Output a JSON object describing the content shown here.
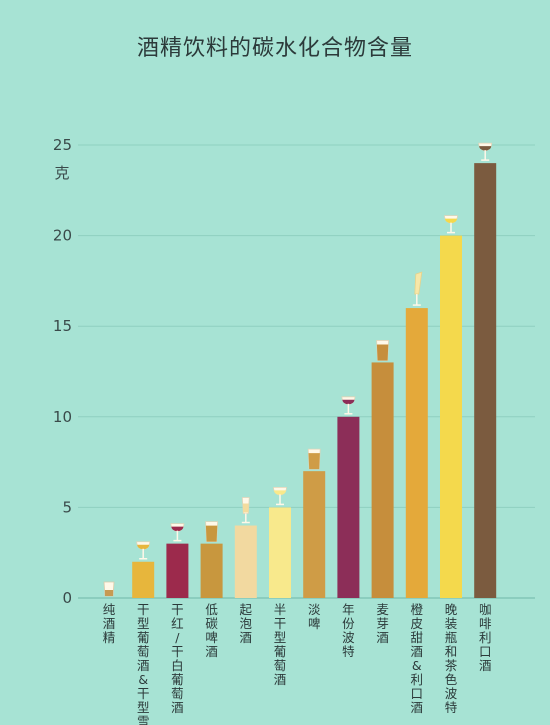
{
  "chart_data": {
    "type": "bar",
    "title": "酒精饮料的碳水化合物含量",
    "ylabel": "克",
    "ylim": [
      0,
      25
    ],
    "yticks": [
      0,
      5,
      10,
      15,
      20,
      25
    ],
    "grid": true,
    "categories": [
      "纯酒精",
      "干型葡萄酒&干型雪利酒",
      "干红/干白葡萄酒",
      "低碳啤酒",
      "起泡酒",
      "半干型葡萄酒",
      "淡啤",
      "年份波特",
      "麦芽酒",
      "橙皮甜酒&利口酒",
      "晚装瓶和茶色波特",
      "咖啡利口酒"
    ],
    "values": [
      0,
      2,
      3,
      3,
      4,
      5,
      7,
      10,
      13,
      16,
      20,
      24
    ],
    "colors": [
      "#c79a52",
      "#e7b63c",
      "#9c2a4c",
      "#c8973e",
      "#f2d9a0",
      "#f8e98c",
      "#cf9c46",
      "#8c2e58",
      "#c68e3c",
      "#e4a93a",
      "#f4d94c",
      "#7b5b3f"
    ],
    "glass_icons": [
      "shot-glass-icon",
      "white-wine-glass-icon",
      "red-wine-glass-icon",
      "beer-glass-icon",
      "champagne-flute-icon",
      "white-wine-glass-icon",
      "beer-glass-icon",
      "port-glass-icon",
      "ale-glass-icon",
      "liqueur-glass-icon",
      "port-glass-icon",
      "coffee-liqueur-glass-icon"
    ]
  }
}
